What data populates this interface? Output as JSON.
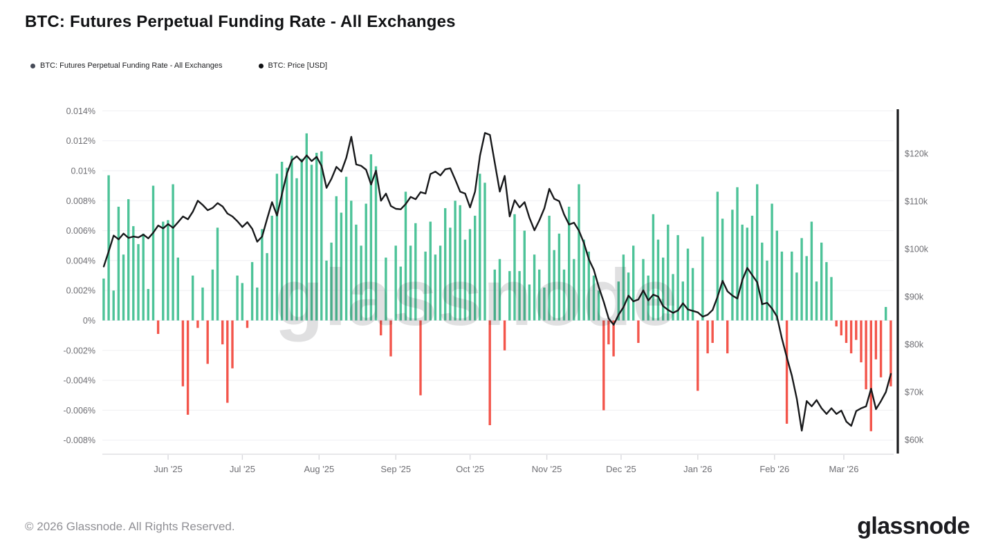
{
  "header": {
    "title": "BTC: Futures Perpetual Funding Rate - All Exchanges"
  },
  "legend": {
    "items": [
      {
        "label": "BTC: Futures Perpetual Funding Rate - All Exchanges",
        "color": "#474b58"
      },
      {
        "label": "BTC: Price [USD]",
        "color": "#0f1013"
      }
    ]
  },
  "watermark": "glassnode",
  "footer": {
    "copyright": "© 2026 Glassnode. All Rights Reserved.",
    "logo": "glassnode"
  },
  "chart_data": {
    "type": "mixed",
    "title": "BTC: Futures Perpetual Funding Rate - All Exchanges",
    "x_start_date": "2025-05-06",
    "x_step_days": 2,
    "grid": "horizontal",
    "legend_position": "top-left",
    "x_axis": {
      "ticks": [
        {
          "label": "Jun '25",
          "day": 26
        },
        {
          "label": "Jul '25",
          "day": 56
        },
        {
          "label": "Aug '25",
          "day": 87
        },
        {
          "label": "Sep '25",
          "day": 118
        },
        {
          "label": "Oct '25",
          "day": 148
        },
        {
          "label": "Nov '25",
          "day": 179
        },
        {
          "label": "Dec '25",
          "day": 209
        },
        {
          "label": "Jan '26",
          "day": 240
        },
        {
          "label": "Feb '26",
          "day": 271
        },
        {
          "label": "Mar '26",
          "day": 299
        }
      ]
    },
    "left_axis": {
      "title": "Funding rate",
      "unit": "0.001 %",
      "ticks": [
        "0.014%",
        "0.012%",
        "0.01%",
        "0.008%",
        "0.006%",
        "0.004%",
        "0.002%",
        "0%",
        "-0.002%",
        "-0.004%",
        "-0.006%",
        "-0.008%"
      ],
      "tick_values": [
        14,
        12,
        10,
        8,
        6,
        4,
        2,
        0,
        -2,
        -4,
        -6,
        -8
      ]
    },
    "right_axis": {
      "title": "BTC price",
      "unit": "USD thousands",
      "ticks": [
        "$120k",
        "$110k",
        "$100k",
        "$90k",
        "$80k",
        "$70k",
        "$60k"
      ],
      "tick_values_k": [
        120,
        110,
        100,
        90,
        80,
        70,
        60
      ]
    },
    "series": [
      {
        "name": "BTC: Futures Perpetual Funding Rate - All Exchanges",
        "type": "bar",
        "unit": "0.001 % (value 9.7 = 0.0097%)",
        "color_positive": "#3ebe8f",
        "color_negative": "#f2463c",
        "values": [
          2.8,
          9.7,
          2.0,
          7.6,
          4.4,
          8.1,
          6.3,
          5.1,
          5.8,
          2.1,
          9.0,
          -0.9,
          6.6,
          6.7,
          9.1,
          4.2,
          -4.4,
          -6.3,
          3.0,
          -0.5,
          2.2,
          -2.9,
          3.4,
          6.2,
          -1.6,
          -5.5,
          -3.2,
          3.0,
          2.5,
          -0.5,
          3.9,
          2.2,
          6.1,
          4.5,
          7.0,
          9.8,
          10.6,
          10.2,
          11.0,
          9.5,
          10.8,
          12.5,
          10.4,
          11.2,
          11.3,
          4.0,
          5.2,
          8.3,
          7.2,
          9.6,
          8.0,
          6.4,
          5.0,
          7.8,
          11.1,
          10.3,
          -1.0,
          4.2,
          -2.4,
          5.0,
          3.6,
          8.6,
          5.0,
          6.5,
          -5.0,
          4.6,
          6.6,
          4.4,
          5.0,
          7.5,
          6.2,
          8.0,
          7.7,
          5.4,
          6.1,
          7.0,
          9.8,
          9.2,
          -7.0,
          3.4,
          4.1,
          -2.0,
          3.3,
          7.1,
          3.3,
          6.0,
          2.4,
          4.4,
          3.4,
          2.2,
          7.0,
          4.7,
          5.8,
          3.4,
          7.6,
          4.1,
          9.1,
          5.4,
          4.6,
          3.0,
          2.0,
          -6.0,
          -1.6,
          -2.4,
          2.6,
          4.4,
          3.2,
          5.0,
          -1.5,
          4.1,
          3.0,
          7.1,
          5.4,
          4.2,
          6.4,
          3.1,
          5.7,
          2.6,
          4.8,
          3.5,
          -4.7,
          5.6,
          -2.2,
          -1.5,
          8.6,
          6.8,
          -2.2,
          7.4,
          8.9,
          6.4,
          6.2,
          7.0,
          9.1,
          5.2,
          4.0,
          7.8,
          6.0,
          4.6,
          -6.9,
          4.6,
          3.2,
          5.5,
          4.3,
          6.6,
          2.6,
          5.2,
          3.9,
          2.9,
          -0.4,
          -1.0,
          -1.5,
          -2.2,
          -1.3,
          -2.8,
          -4.6,
          -7.4,
          -2.6,
          -3.8,
          0.9,
          -4.4
        ]
      },
      {
        "name": "BTC: Price [USD]",
        "type": "line",
        "unit": "USD thousands",
        "color": "#17181a",
        "values": [
          96.3,
          99.5,
          102.8,
          102.0,
          103.2,
          102.3,
          102.6,
          102.4,
          103.0,
          102.2,
          103.4,
          104.9,
          104.3,
          105.2,
          104.4,
          105.6,
          106.8,
          106.2,
          107.8,
          110.1,
          109.2,
          108.1,
          108.6,
          109.6,
          108.9,
          107.4,
          106.8,
          105.8,
          104.6,
          105.6,
          104.2,
          101.5,
          102.6,
          106.3,
          109.8,
          107.0,
          111.5,
          115.8,
          118.6,
          119.4,
          118.3,
          119.6,
          118.4,
          119.3,
          117.4,
          112.8,
          114.7,
          117.2,
          116.2,
          119.1,
          123.5,
          117.7,
          117.4,
          116.6,
          113.5,
          116.4,
          110.1,
          111.6,
          109.0,
          108.4,
          108.3,
          109.4,
          110.9,
          110.4,
          111.9,
          111.6,
          115.7,
          116.2,
          115.4,
          116.7,
          116.9,
          114.5,
          112.0,
          111.6,
          108.7,
          112.0,
          119.5,
          124.3,
          123.9,
          118.0,
          112.0,
          115.3,
          106.8,
          110.2,
          108.7,
          109.8,
          106.5,
          103.9,
          106.0,
          108.5,
          112.6,
          110.5,
          110.0,
          107.2,
          105.1,
          105.5,
          103.8,
          101.2,
          97.8,
          95.6,
          92.0,
          88.9,
          85.4,
          84.1,
          86.2,
          87.8,
          90.2,
          89.0,
          89.4,
          91.3,
          89.2,
          90.4,
          90.0,
          88.0,
          87.2,
          86.6,
          87.1,
          88.6,
          87.3,
          87.0,
          86.7,
          85.8,
          86.2,
          87.2,
          90.0,
          93.3,
          91.1,
          90.2,
          89.6,
          93.5,
          96.0,
          94.5,
          93.0,
          88.4,
          88.7,
          87.5,
          85.8,
          81.2,
          77.2,
          73.4,
          68.6,
          61.9,
          68.1,
          67.0,
          68.3,
          66.6,
          65.4,
          66.6,
          65.4,
          66.1,
          63.8,
          62.9,
          66.0,
          66.6,
          67.0,
          70.7,
          66.4,
          68.1,
          70.0,
          73.8
        ]
      }
    ]
  }
}
